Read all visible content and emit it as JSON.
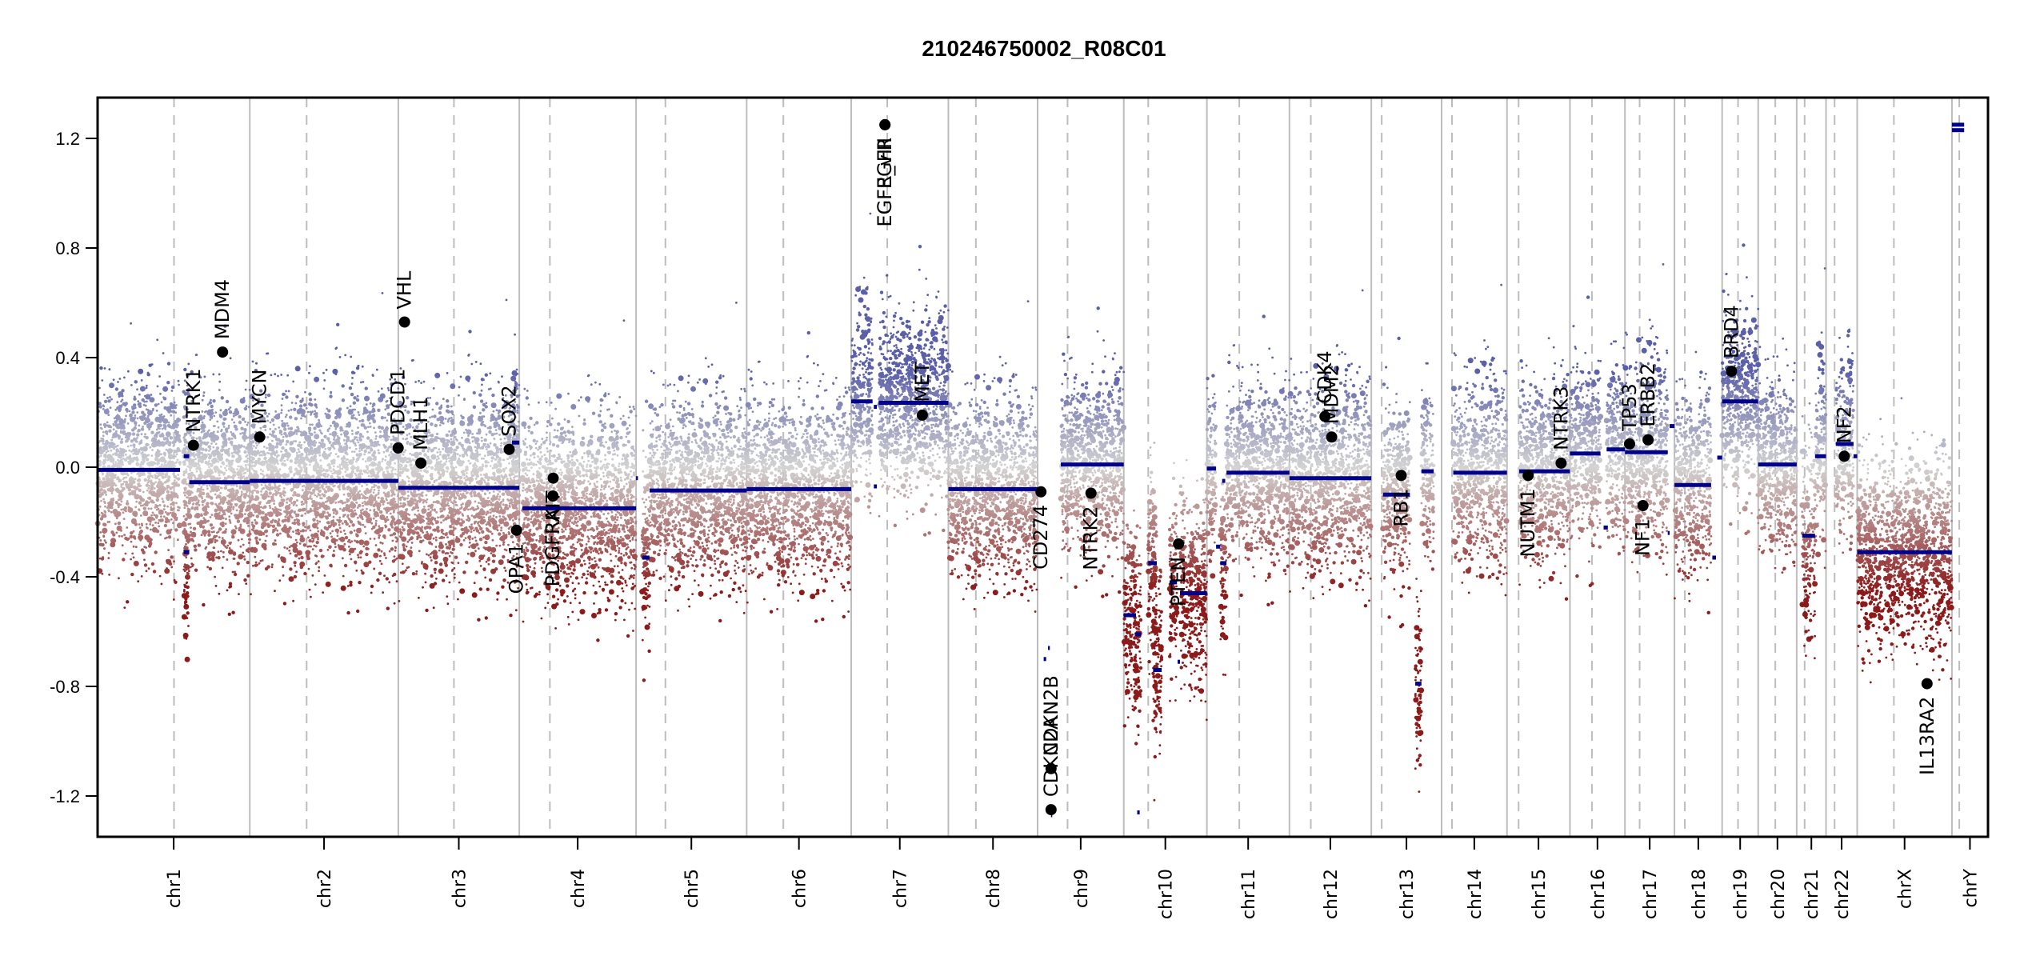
{
  "chart_data": {
    "type": "scatter",
    "title": "210246750002_R08C01",
    "xlabel": "",
    "ylabel": "",
    "ylim": [
      -1.35,
      1.35
    ],
    "yticks": [
      -1.2,
      -0.8,
      -0.4,
      0.0,
      0.4,
      0.8,
      1.2
    ],
    "ytick_labels": [
      "-1.2",
      "-0.8",
      "-0.4",
      "0.0",
      "0.4",
      "0.8",
      "1.2"
    ],
    "grid": "chromosome boundaries (solid) and centromeres (dashed)",
    "colors": {
      "gain": "#5b5fa8",
      "neutral": "#d3d3d3",
      "loss": "#8b1a1a",
      "segment": "#00008b",
      "gene": "#000000",
      "boundary": "#bdbdbd",
      "centromere": "#bdbdbd"
    },
    "chromosomes": [
      {
        "name": "chr1",
        "label": "chr1",
        "length_mb": 249,
        "centromere_mb": 125
      },
      {
        "name": "chr2",
        "label": "chr2",
        "length_mb": 243,
        "centromere_mb": 93
      },
      {
        "name": "chr3",
        "label": "chr3",
        "length_mb": 198,
        "centromere_mb": 91
      },
      {
        "name": "chr4",
        "label": "chr4",
        "length_mb": 191,
        "centromere_mb": 50
      },
      {
        "name": "chr5",
        "label": "chr5",
        "length_mb": 181,
        "centromere_mb": 48
      },
      {
        "name": "chr6",
        "label": "chr6",
        "length_mb": 171,
        "centromere_mb": 60
      },
      {
        "name": "chr7",
        "label": "chr7",
        "length_mb": 159,
        "centromere_mb": 59
      },
      {
        "name": "chr8",
        "label": "chr8",
        "length_mb": 146,
        "centromere_mb": 45
      },
      {
        "name": "chr9",
        "label": "chr9",
        "length_mb": 141,
        "centromere_mb": 49
      },
      {
        "name": "chr10",
        "label": "chr10",
        "length_mb": 136,
        "centromere_mb": 40
      },
      {
        "name": "chr11",
        "label": "chr11",
        "length_mb": 135,
        "centromere_mb": 53
      },
      {
        "name": "chr12",
        "label": "chr12",
        "length_mb": 134,
        "centromere_mb": 35
      },
      {
        "name": "chr13",
        "label": "chr13",
        "length_mb": 115,
        "centromere_mb": 17
      },
      {
        "name": "chr14",
        "label": "chr14",
        "length_mb": 107,
        "centromere_mb": 17
      },
      {
        "name": "chr15",
        "label": "chr15",
        "length_mb": 103,
        "centromere_mb": 19
      },
      {
        "name": "chr16",
        "label": "chr16",
        "length_mb": 90,
        "centromere_mb": 36
      },
      {
        "name": "chr17",
        "label": "chr17",
        "length_mb": 81,
        "centromere_mb": 24
      },
      {
        "name": "chr18",
        "label": "chr18",
        "length_mb": 78,
        "centromere_mb": 17
      },
      {
        "name": "chr19",
        "label": "chr19",
        "length_mb": 59,
        "centromere_mb": 26
      },
      {
        "name": "chr20",
        "label": "chr20",
        "length_mb": 63,
        "centromere_mb": 28
      },
      {
        "name": "chr21",
        "label": "chr21",
        "length_mb": 48,
        "centromere_mb": 13
      },
      {
        "name": "chr22",
        "label": "chr22",
        "length_mb": 51,
        "centromere_mb": 14
      },
      {
        "name": "chrX",
        "label": "chrX",
        "length_mb": 155,
        "centromere_mb": 60
      },
      {
        "name": "chrY",
        "label": "chrY",
        "length_mb": 59,
        "centromere_mb": 12
      }
    ],
    "segments": [
      {
        "chr": "chr1",
        "start": 0,
        "end": 135,
        "value": -0.01
      },
      {
        "chr": "chr1",
        "start": 141,
        "end": 150,
        "value": 0.04
      },
      {
        "chr": "chr1",
        "start": 141,
        "end": 150,
        "value": -0.31
      },
      {
        "chr": "chr1",
        "start": 150,
        "end": 249,
        "value": -0.055
      },
      {
        "chr": "chr2",
        "start": 0,
        "end": 243,
        "value": -0.05
      },
      {
        "chr": "chr3",
        "start": 0,
        "end": 198,
        "value": -0.075
      },
      {
        "chr": "chr3",
        "start": 186,
        "end": 198,
        "value": 0.09
      },
      {
        "chr": "chr4",
        "start": 5,
        "end": 191,
        "value": -0.15
      },
      {
        "chr": "chr5",
        "start": 0,
        "end": 3,
        "value": -0.04
      },
      {
        "chr": "chr5",
        "start": 10,
        "end": 22,
        "value": -0.33
      },
      {
        "chr": "chr5",
        "start": 22,
        "end": 181,
        "value": -0.085
      },
      {
        "chr": "chr6",
        "start": 0,
        "end": 171,
        "value": -0.08
      },
      {
        "chr": "chr7",
        "start": 0,
        "end": 35,
        "value": 0.24
      },
      {
        "chr": "chr7",
        "start": 37,
        "end": 42,
        "value": 0.22
      },
      {
        "chr": "chr7",
        "start": 37,
        "end": 42,
        "value": -0.07
      },
      {
        "chr": "chr7",
        "start": 45,
        "end": 159,
        "value": 0.235
      },
      {
        "chr": "chr8",
        "start": 0,
        "end": 146,
        "value": -0.08
      },
      {
        "chr": "chr9",
        "start": 0,
        "end": 2,
        "value": -0.09
      },
      {
        "chr": "chr9",
        "start": 10,
        "end": 14,
        "value": -0.7
      },
      {
        "chr": "chr9",
        "start": 17,
        "end": 20,
        "value": -0.66
      },
      {
        "chr": "chr9",
        "start": 22,
        "end": 24,
        "value": -1.27
      },
      {
        "chr": "chr9",
        "start": 38,
        "end": 141,
        "value": 0.01
      },
      {
        "chr": "chr10",
        "start": 0,
        "end": 20,
        "value": -0.54
      },
      {
        "chr": "chr10",
        "start": 18,
        "end": 28,
        "value": -0.61
      },
      {
        "chr": "chr10",
        "start": 22,
        "end": 26,
        "value": -1.26
      },
      {
        "chr": "chr10",
        "start": 40,
        "end": 54,
        "value": -0.35
      },
      {
        "chr": "chr10",
        "start": 48,
        "end": 62,
        "value": -0.74
      },
      {
        "chr": "chr10",
        "start": 75,
        "end": 87,
        "value": -0.42
      },
      {
        "chr": "chr10",
        "start": 88,
        "end": 92,
        "value": -0.71
      },
      {
        "chr": "chr10",
        "start": 92,
        "end": 136,
        "value": -0.46
      },
      {
        "chr": "chr11",
        "start": 0,
        "end": 15,
        "value": -0.005
      },
      {
        "chr": "chr11",
        "start": 15,
        "end": 22,
        "value": -0.29
      },
      {
        "chr": "chr11",
        "start": 22,
        "end": 32,
        "value": -0.35
      },
      {
        "chr": "chr11",
        "start": 25,
        "end": 30,
        "value": -0.05
      },
      {
        "chr": "chr11",
        "start": 32,
        "end": 135,
        "value": -0.02
      },
      {
        "chr": "chr12",
        "start": 0,
        "end": 134,
        "value": -0.04
      },
      {
        "chr": "chr13",
        "start": 19,
        "end": 63,
        "value": -0.1
      },
      {
        "chr": "chr13",
        "start": 72,
        "end": 82,
        "value": -0.79
      },
      {
        "chr": "chr13",
        "start": 82,
        "end": 102,
        "value": -0.015
      },
      {
        "chr": "chr14",
        "start": 19,
        "end": 107,
        "value": -0.02
      },
      {
        "chr": "chr15",
        "start": 20,
        "end": 103,
        "value": -0.015
      },
      {
        "chr": "chr16",
        "start": 0,
        "end": 50,
        "value": 0.05
      },
      {
        "chr": "chr16",
        "start": 55,
        "end": 62,
        "value": -0.22
      },
      {
        "chr": "chr16",
        "start": 60,
        "end": 90,
        "value": 0.065
      },
      {
        "chr": "chr17",
        "start": 0,
        "end": 70,
        "value": 0.055
      },
      {
        "chr": "chr17",
        "start": 70,
        "end": 73,
        "value": -0.24
      },
      {
        "chr": "chr17",
        "start": 73,
        "end": 81,
        "value": 0.15
      },
      {
        "chr": "chr18",
        "start": 0,
        "end": 60,
        "value": -0.065
      },
      {
        "chr": "chr18",
        "start": 62,
        "end": 68,
        "value": -0.33
      },
      {
        "chr": "chr18",
        "start": 70,
        "end": 78,
        "value": 0.035
      },
      {
        "chr": "chr19",
        "start": 0,
        "end": 59,
        "value": 0.24
      },
      {
        "chr": "chr20",
        "start": 0,
        "end": 63,
        "value": 0.01
      },
      {
        "chr": "chr21",
        "start": 9,
        "end": 30,
        "value": -0.25
      },
      {
        "chr": "chr21",
        "start": 30,
        "end": 48,
        "value": 0.04
      },
      {
        "chr": "chr22",
        "start": 16,
        "end": 45,
        "value": 0.085
      },
      {
        "chr": "chr22",
        "start": 45,
        "end": 51,
        "value": 0.04
      },
      {
        "chr": "chrX",
        "start": 0,
        "end": 155,
        "value": -0.31
      },
      {
        "chr": "chrY",
        "start": 0,
        "end": 20,
        "value": 1.25
      },
      {
        "chr": "chrY",
        "start": 0,
        "end": 20,
        "value": 1.23
      }
    ],
    "genes": [
      {
        "name": "NTRK1",
        "chr": "chr1",
        "pos_mb": 156.8,
        "value": 0.08,
        "label_side": "above"
      },
      {
        "name": "MDM4",
        "chr": "chr1",
        "pos_mb": 204.5,
        "value": 0.42,
        "label_side": "above"
      },
      {
        "name": "MYCN",
        "chr": "chr2",
        "pos_mb": 16.1,
        "value": 0.11,
        "label_side": "above"
      },
      {
        "name": "PDCD1",
        "chr": "chr2",
        "pos_mb": 242.8,
        "value": 0.07,
        "label_side": "above"
      },
      {
        "name": "VHL",
        "chr": "chr3",
        "pos_mb": 10.2,
        "value": 0.53,
        "label_side": "above"
      },
      {
        "name": "MLH1",
        "chr": "chr3",
        "pos_mb": 37.0,
        "value": 0.015,
        "label_side": "above"
      },
      {
        "name": "SOX2",
        "chr": "chr3",
        "pos_mb": 181.4,
        "value": 0.065,
        "label_side": "above"
      },
      {
        "name": "OPA1",
        "chr": "chr3",
        "pos_mb": 193.3,
        "value": -0.23,
        "label_side": "below"
      },
      {
        "name": "PDGFRA",
        "chr": "chr4",
        "pos_mb": 55.1,
        "value": -0.105,
        "label_side": "below"
      },
      {
        "name": "KIT",
        "chr": "chr4",
        "pos_mb": 55.5,
        "value": -0.04,
        "label_side": "below"
      },
      {
        "name": "EGFR",
        "chr": "chr7",
        "pos_mb": 55.2,
        "value": 1.25,
        "label_side": "below"
      },
      {
        "name": "EGFR_vIII",
        "chr": "chr7",
        "pos_mb": 55.3,
        "value": 1.25,
        "label_side": "below"
      },
      {
        "name": "MET",
        "chr": "chr7",
        "pos_mb": 116.4,
        "value": 0.19,
        "label_side": "above"
      },
      {
        "name": "CD274",
        "chr": "chr9",
        "pos_mb": 5.5,
        "value": -0.09,
        "label_side": "below"
      },
      {
        "name": "CDKN2A",
        "chr": "chr9",
        "pos_mb": 21.97,
        "value": -1.25,
        "label_side": "above"
      },
      {
        "name": "CDKN2B",
        "chr": "chr9",
        "pos_mb": 22.0,
        "value": -1.1,
        "label_side": "above"
      },
      {
        "name": "NTRK2",
        "chr": "chr9",
        "pos_mb": 87.3,
        "value": -0.095,
        "label_side": "below"
      },
      {
        "name": "PTEN",
        "chr": "chr10",
        "pos_mb": 89.6,
        "value": -0.28,
        "label_side": "below"
      },
      {
        "name": "CDK4",
        "chr": "chr12",
        "pos_mb": 58.1,
        "value": 0.185,
        "label_side": "above"
      },
      {
        "name": "MDM2",
        "chr": "chr12",
        "pos_mb": 69.2,
        "value": 0.11,
        "label_side": "above"
      },
      {
        "name": "RB1",
        "chr": "chr13",
        "pos_mb": 48.9,
        "value": -0.03,
        "label_side": "below"
      },
      {
        "name": "NUTM1",
        "chr": "chr15",
        "pos_mb": 34.6,
        "value": -0.03,
        "label_side": "below"
      },
      {
        "name": "NTRK3",
        "chr": "chr15",
        "pos_mb": 88.6,
        "value": 0.015,
        "label_side": "above"
      },
      {
        "name": "TP53",
        "chr": "chr17",
        "pos_mb": 7.6,
        "value": 0.085,
        "label_side": "above"
      },
      {
        "name": "NF1",
        "chr": "chr17",
        "pos_mb": 29.5,
        "value": -0.14,
        "label_side": "below"
      },
      {
        "name": "ERBB2",
        "chr": "chr17",
        "pos_mb": 37.9,
        "value": 0.1,
        "label_side": "above"
      },
      {
        "name": "BRD4",
        "chr": "chr19",
        "pos_mb": 15.4,
        "value": 0.35,
        "label_side": "above"
      },
      {
        "name": "NF2",
        "chr": "chr22",
        "pos_mb": 29.9,
        "value": 0.04,
        "label_side": "above"
      },
      {
        "name": "IL13RA2",
        "chr": "chrX",
        "pos_mb": 114.3,
        "value": -0.79,
        "label_side": "below"
      }
    ],
    "probe_density_note": "background probe cloud colored by log2 ratio: blue = gain, grey = neutral, red = loss"
  }
}
